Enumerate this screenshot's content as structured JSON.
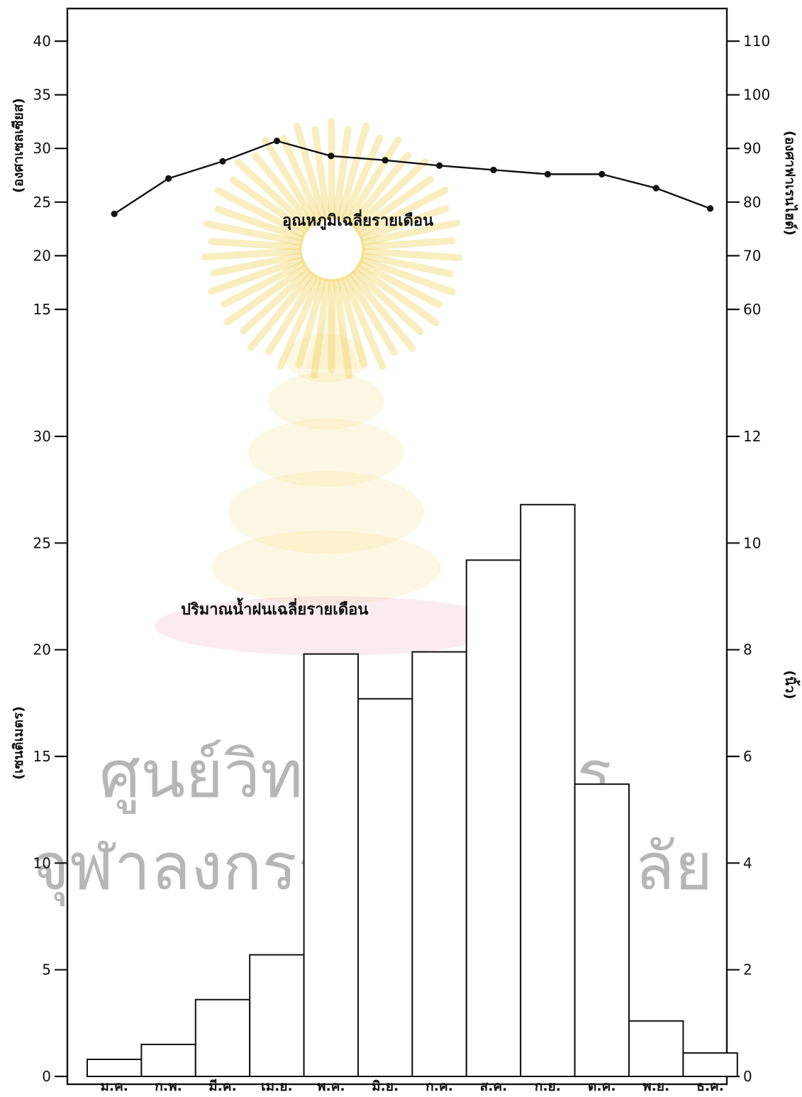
{
  "chart_data": [
    {
      "type": "line",
      "ylabel_left": "(องศาเซลเซียส)",
      "ylabel_right": "(องศาฟาเรนไฮต์)",
      "ylim_left": [
        15,
        40
      ],
      "ylim_right": [
        60,
        110
      ],
      "left_ticks": [
        15,
        20,
        25,
        30,
        35,
        40
      ],
      "right_ticks": [
        60,
        70,
        80,
        90,
        100,
        110
      ],
      "grid": false,
      "series": [
        {
          "name": "อุณหภูมิเฉลี่ยรายเดือน",
          "values": [
            23.9,
            27.2,
            28.8,
            30.7,
            29.3,
            28.9,
            28.4,
            28.0,
            27.6,
            27.6,
            26.3,
            24.4
          ]
        }
      ]
    },
    {
      "type": "bar",
      "xlabel": "",
      "ylabel_left": "(เซนติเมตร)",
      "ylabel_right": "(นิ้ว)",
      "ylim_left": [
        0,
        30
      ],
      "ylim_right": [
        0,
        12
      ],
      "left_ticks": [
        0,
        5,
        10,
        15,
        20,
        25,
        30
      ],
      "right_ticks": [
        0,
        2,
        4,
        6,
        8,
        10,
        12
      ],
      "grid": false,
      "series": [
        {
          "name": "ปริมาณน้ำฝนเฉลี่ยรายเดือน",
          "values": [
            0.8,
            1.5,
            3.6,
            5.7,
            19.8,
            17.7,
            19.9,
            24.2,
            26.8,
            13.7,
            2.6,
            1.1
          ]
        }
      ]
    }
  ],
  "categories": [
    "ม.ค.",
    "ก.พ.",
    "มี.ค.",
    "เม.ย.",
    "พ.ค.",
    "มิ.ย.",
    "ก.ค.",
    "ส.ค.",
    "ก.ย.",
    "ต.ค.",
    "พ.ย.",
    "ธ.ค."
  ],
  "colors": {
    "ink": "#111111",
    "watermark_yellow": "#f3d76a",
    "watermark_pink": "#e7a6bd"
  },
  "watermark": {
    "line1": "ศูนย์วิทยทรัพยากร",
    "line2": "จุฬาลงกรณ์มหาวิทยาลัย"
  }
}
